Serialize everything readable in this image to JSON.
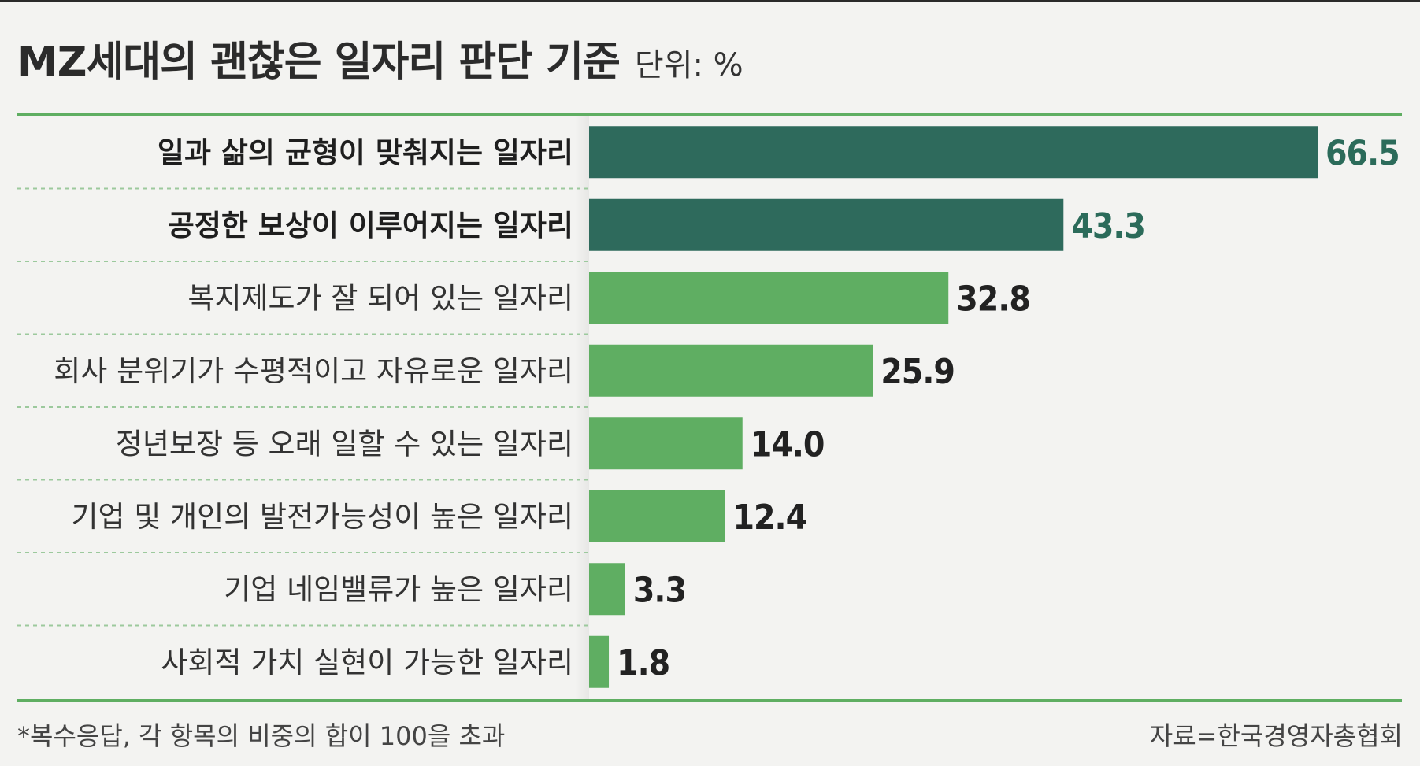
{
  "header": {
    "title": "MZ세대의 괜찮은 일자리 판단 기준",
    "unit": "단위: %"
  },
  "chart_data": {
    "type": "bar",
    "orientation": "horizontal",
    "categories": [
      "일과 삶의 균형이 맞춰지는 일자리",
      "공정한 보상이 이루어지는 일자리",
      "복지제도가 잘 되어 있는 일자리",
      "회사 분위기가 수평적이고 자유로운 일자리",
      "정년보장 등 오래 일할 수 있는 일자리",
      "기업 및 개인의 발전가능성이 높은 일자리",
      "기업 네임밸류가 높은 일자리",
      "사회적 가치 실현이 가능한 일자리"
    ],
    "values": [
      66.5,
      43.3,
      32.8,
      25.9,
      14.0,
      12.4,
      3.3,
      1.8
    ],
    "value_labels": [
      "66.5",
      "43.3",
      "32.8",
      "25.9",
      "14.0",
      "12.4",
      "3.3",
      "1.8"
    ],
    "highlighted": [
      true,
      true,
      false,
      false,
      false,
      false,
      false,
      false
    ],
    "xlim": [
      0,
      66.5
    ],
    "grid": false,
    "legend": "none",
    "colors": {
      "highlight": "#2e6a5c",
      "normal": "#5fae62",
      "highlight_label": "#2b6b5a",
      "rule": "#5fae62",
      "divider": "#9cc99d"
    }
  },
  "footer": {
    "note": "*복수응답, 각 항목의 비중의 합이 100을 초과",
    "source": "자료=한국경영자총협회"
  }
}
